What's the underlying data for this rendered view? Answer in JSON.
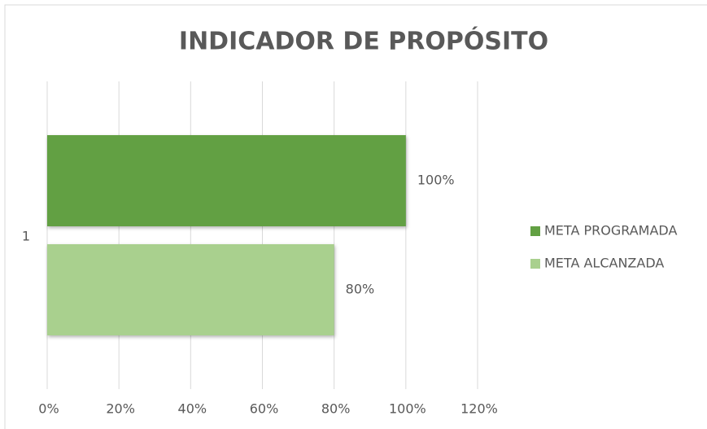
{
  "chart_data": {
    "type": "bar",
    "orientation": "horizontal",
    "title": "INDICADOR DE PROPÓSITO",
    "categories": [
      "1"
    ],
    "series": [
      {
        "name": "META PROGRAMADA",
        "color": "#62a043",
        "values": [
          100
        ],
        "value_labels": [
          "100%"
        ]
      },
      {
        "name": "META ALCANZADA",
        "color": "#a9d08e",
        "values": [
          80
        ],
        "value_labels": [
          "80%"
        ]
      }
    ],
    "xlim": [
      0,
      120
    ],
    "xticks": [
      {
        "value": 0,
        "label": "0%"
      },
      {
        "value": 20,
        "label": "20%"
      },
      {
        "value": 40,
        "label": "40%"
      },
      {
        "value": 60,
        "label": "60%"
      },
      {
        "value": 80,
        "label": "80%"
      },
      {
        "value": 100,
        "label": "100%"
      },
      {
        "value": 120,
        "label": "120%"
      }
    ],
    "grid": true,
    "legend": "right"
  }
}
